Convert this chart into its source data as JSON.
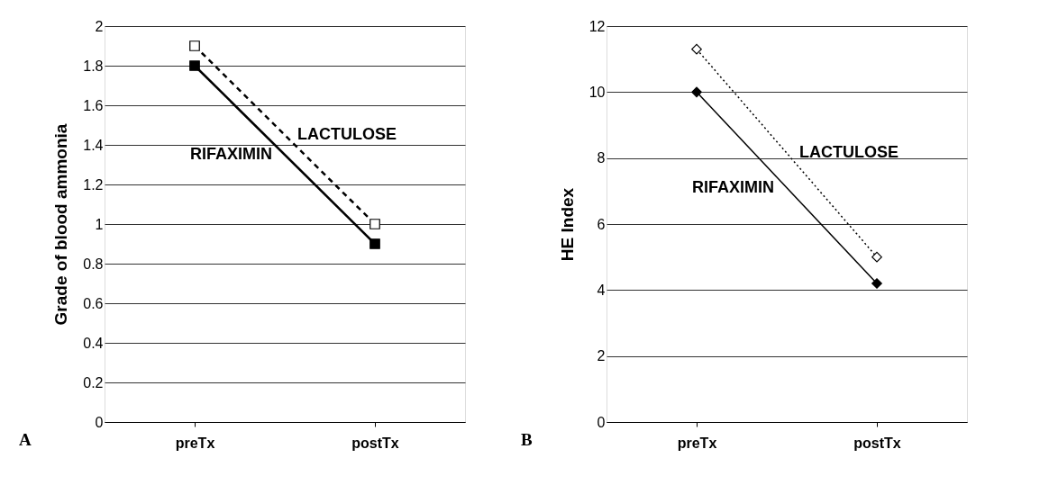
{
  "chart_data": [
    {
      "type": "line",
      "ylabel": "Grade of blood ammonia",
      "categories": [
        "preTx",
        "postTx"
      ],
      "ylim": [
        0,
        2
      ],
      "yticks": [
        0,
        0.2,
        0.4,
        0.6,
        0.8,
        1,
        1.2,
        1.4,
        1.6,
        1.8,
        2
      ],
      "grid": "y",
      "legend": false,
      "marker": "square",
      "annotations": [
        "A"
      ],
      "series": [
        {
          "name": "RIFAXIMIN",
          "color": "#000000",
          "values": [
            1.8,
            0.9
          ],
          "line_style": "solid"
        },
        {
          "name": "LACTULOSE",
          "color": "#000000",
          "values": [
            1.9,
            1.0
          ],
          "line_style": "dashed"
        }
      ]
    },
    {
      "type": "line",
      "ylabel": "HE Index",
      "categories": [
        "preTx",
        "postTx"
      ],
      "ylim": [
        0,
        12
      ],
      "yticks": [
        0,
        2,
        4,
        6,
        8,
        10,
        12
      ],
      "grid": "y",
      "legend": false,
      "marker": "diamond",
      "annotations": [
        "B"
      ],
      "series": [
        {
          "name": "RIFAXIMIN",
          "color": "#000000",
          "values": [
            10,
            4.2
          ],
          "line_style": "solid"
        },
        {
          "name": "LACTULOSE",
          "color": "#000000",
          "values": [
            11.3,
            5.0
          ],
          "line_style": "dotted"
        }
      ]
    }
  ]
}
